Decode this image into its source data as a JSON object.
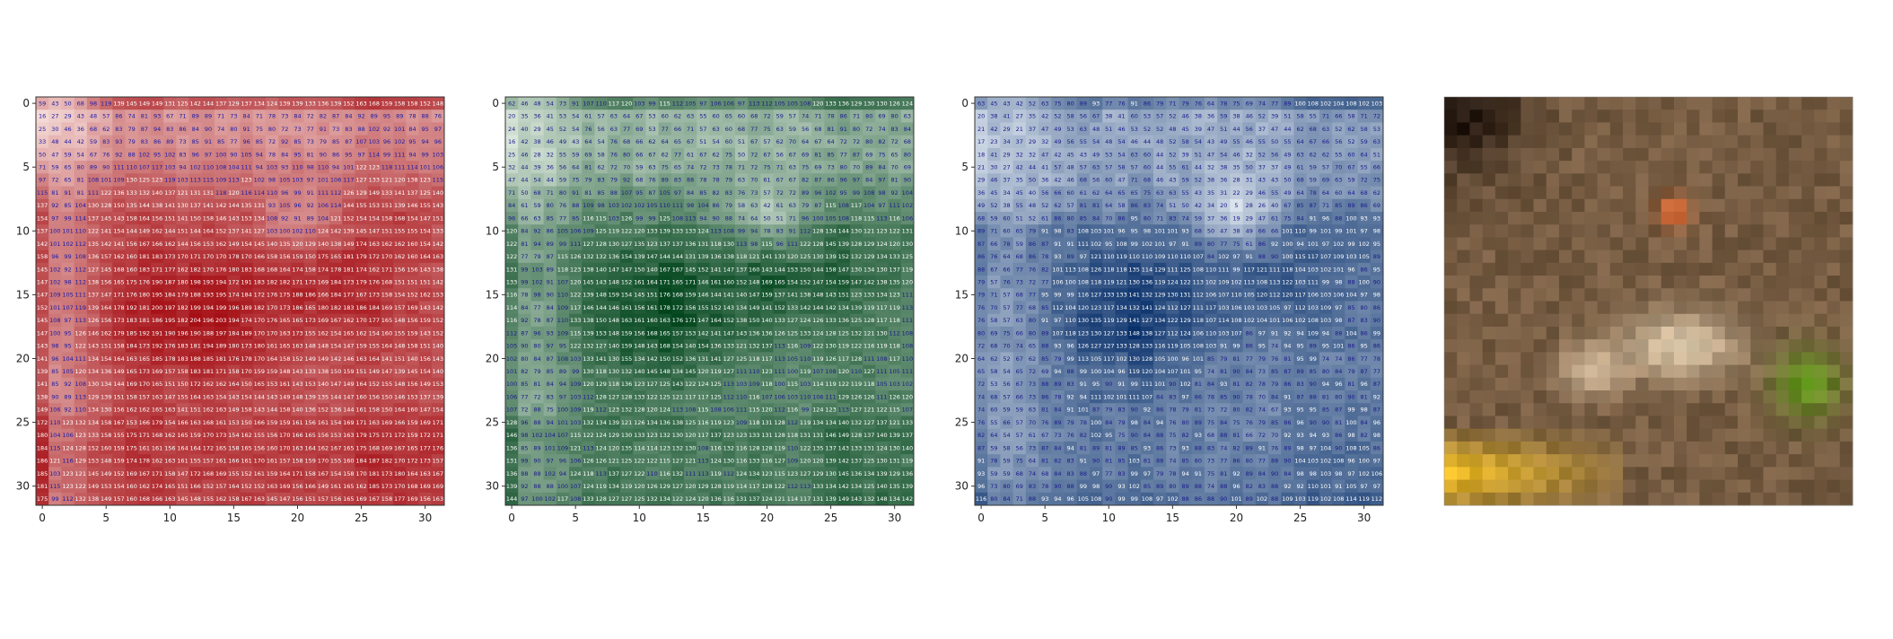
{
  "chart_data": [
    {
      "type": "heatmap",
      "title": "",
      "xlabel": "",
      "ylabel": "",
      "channel": "red",
      "colormap": [
        "#fff5f0",
        "#a50f15"
      ],
      "xlim": [
        0,
        31
      ],
      "ylim": [
        31,
        0
      ],
      "x_ticks": [
        0,
        5,
        10,
        15,
        20,
        25,
        30
      ],
      "y_ticks": [
        0,
        5,
        10,
        15,
        20,
        25,
        30
      ],
      "cell_values_shown": true,
      "row0_values": [
        59,
        43,
        50,
        68,
        98,
        119,
        139,
        145,
        149,
        149,
        131,
        125,
        142,
        144,
        137,
        129,
        137,
        134,
        124,
        139,
        139,
        133,
        136,
        139,
        152,
        163,
        168,
        159,
        158,
        158,
        152,
        148
      ],
      "column0_values": [
        59,
        16,
        25,
        33,
        50,
        71,
        97,
        115,
        137,
        154,
        137,
        142,
        158,
        145,
        147,
        147,
        152,
        145,
        147,
        143,
        141,
        139,
        141,
        138,
        149,
        172,
        180,
        184,
        186,
        185,
        181,
        175
      ]
    },
    {
      "type": "heatmap",
      "title": "",
      "xlabel": "",
      "ylabel": "",
      "channel": "green",
      "colormap": [
        "#f7fcf5",
        "#00441b"
      ],
      "xlim": [
        0,
        31
      ],
      "ylim": [
        31,
        0
      ],
      "x_ticks": [
        0,
        5,
        10,
        15,
        20,
        25,
        30
      ],
      "y_ticks": [
        0,
        5,
        10,
        15,
        20,
        25,
        30
      ],
      "cell_values_shown": true,
      "row0_values": [
        62,
        46,
        48,
        54,
        73,
        91,
        107,
        110,
        117,
        120,
        103,
        99,
        115,
        112,
        105,
        97,
        106,
        106,
        97,
        113,
        112,
        105,
        105,
        108,
        120,
        133,
        136,
        129,
        130,
        130,
        126,
        124
      ],
      "column0_values": [
        62,
        20,
        24,
        16,
        25,
        32,
        47,
        71,
        84,
        96,
        120,
        122,
        122,
        131,
        133,
        116,
        114,
        116,
        112,
        105,
        102,
        101,
        100,
        106,
        107,
        128,
        146,
        136,
        131,
        136,
        139,
        144
      ]
    },
    {
      "type": "heatmap",
      "title": "",
      "xlabel": "",
      "ylabel": "",
      "channel": "blue",
      "colormap": [
        "#f7fbff",
        "#08306b"
      ],
      "xlim": [
        0,
        31
      ],
      "ylim": [
        31,
        0
      ],
      "x_ticks": [
        0,
        5,
        10,
        15,
        20,
        25,
        30
      ],
      "y_ticks": [
        0,
        5,
        10,
        15,
        20,
        25,
        30
      ],
      "cell_values_shown": true,
      "row0_values": [
        63,
        45,
        43,
        42,
        52,
        63,
        75,
        80,
        89,
        93,
        77,
        76,
        91,
        86,
        79,
        71,
        79,
        76,
        64,
        78,
        75,
        69,
        74,
        77,
        89,
        100,
        108,
        102,
        104,
        108,
        102,
        103
      ],
      "column0_values": [
        63,
        20,
        21,
        17,
        18,
        21,
        29,
        36,
        49,
        68,
        89,
        87,
        86,
        88,
        79,
        79,
        76,
        76,
        80,
        72,
        64,
        65,
        72,
        74,
        74,
        76,
        82,
        87,
        91,
        93,
        96,
        116
      ]
    }
  ],
  "image_panel": {
    "type": "image",
    "description_key": "pixelated-frog-rgb-composite"
  }
}
